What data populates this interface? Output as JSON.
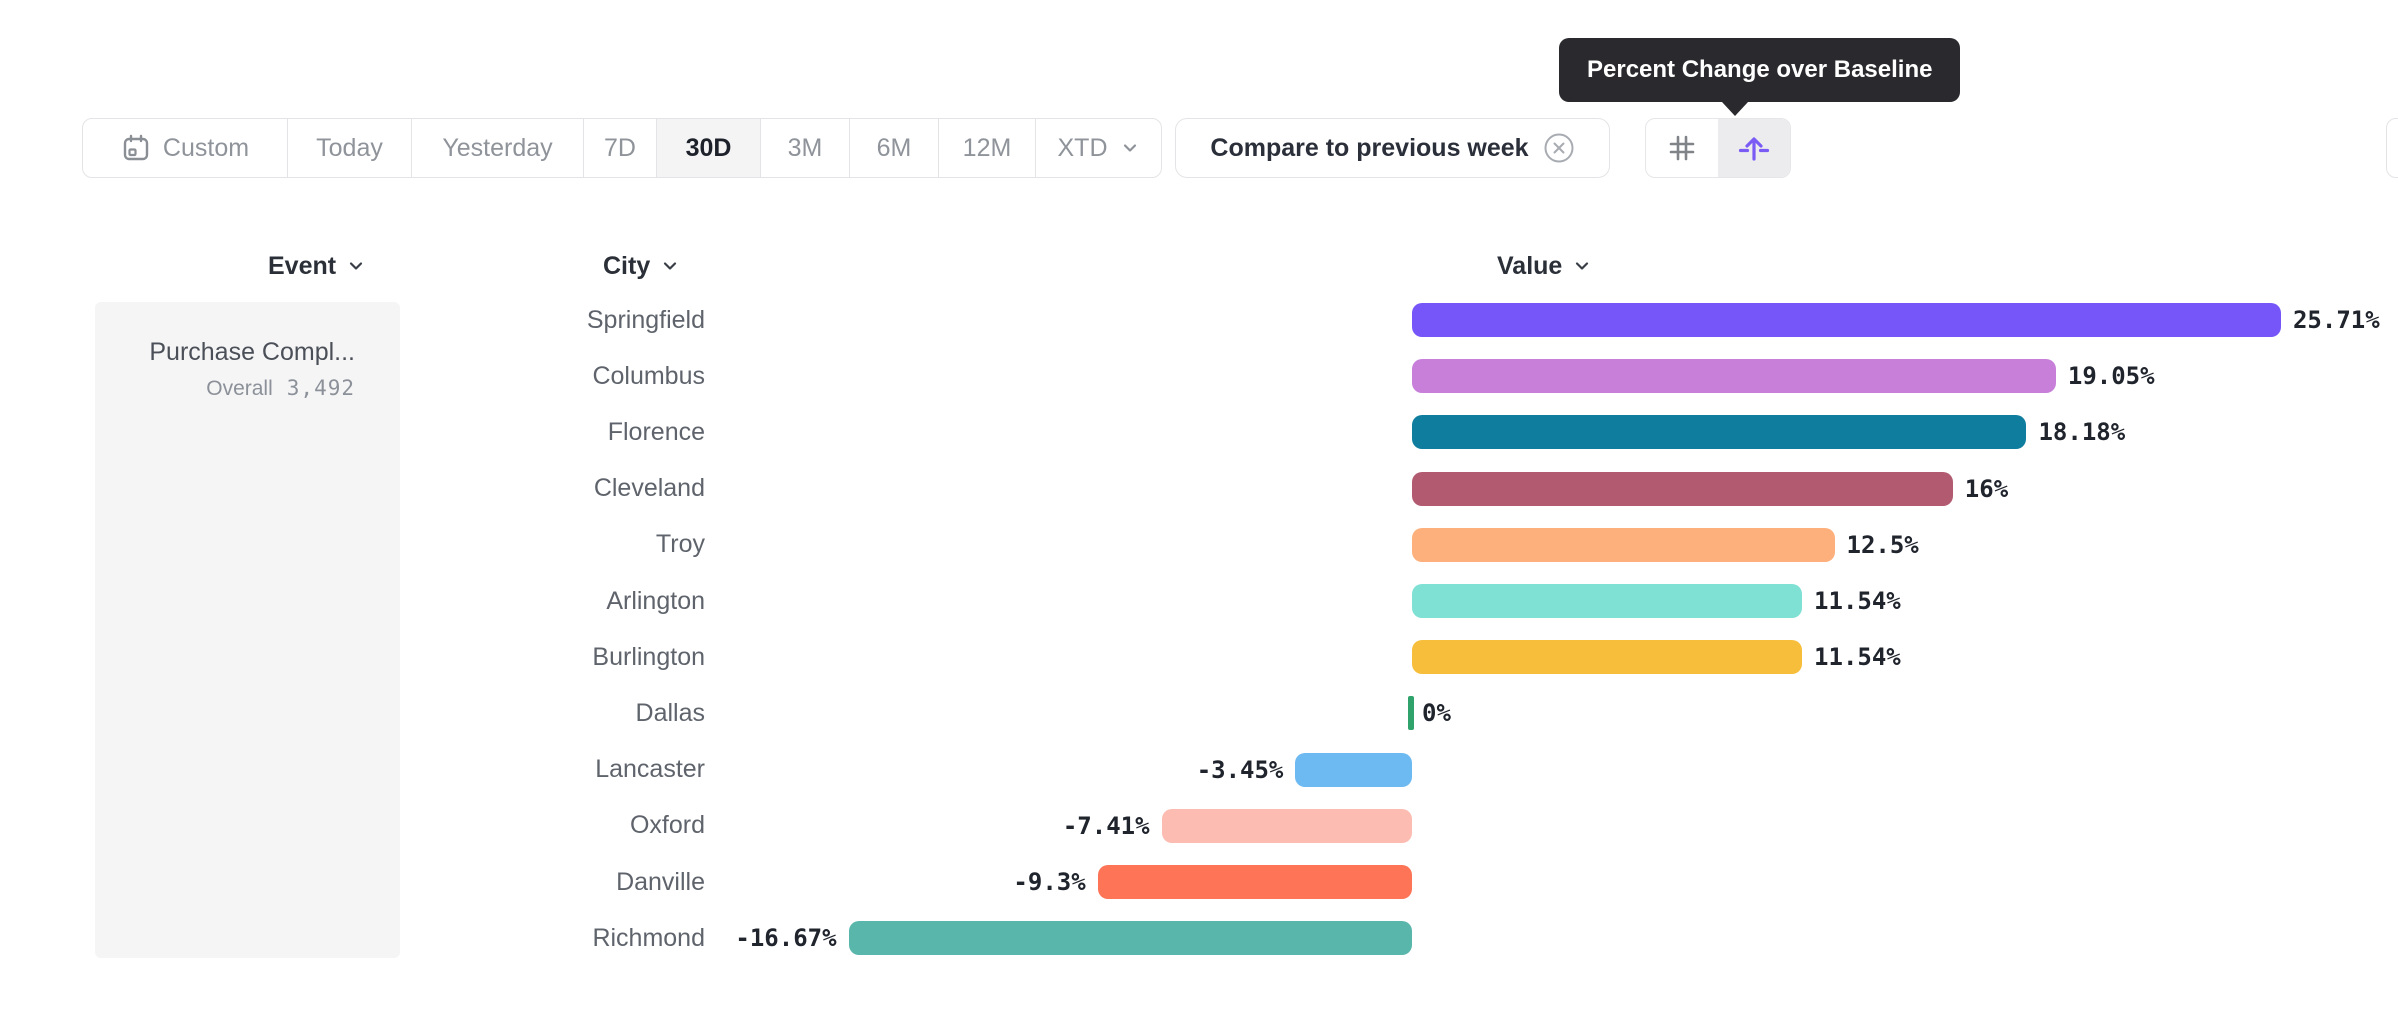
{
  "tooltip": {
    "text": "Percent Change over Baseline"
  },
  "toolbar": {
    "date_ranges": [
      {
        "label": "Custom",
        "icon": "calendar-icon",
        "selected": false
      },
      {
        "label": "Today",
        "icon": null,
        "selected": false
      },
      {
        "label": "Yesterday",
        "icon": null,
        "selected": false
      },
      {
        "label": "7D",
        "icon": null,
        "selected": false
      },
      {
        "label": "30D",
        "icon": null,
        "selected": true
      },
      {
        "label": "3M",
        "icon": null,
        "selected": false
      },
      {
        "label": "6M",
        "icon": null,
        "selected": false
      },
      {
        "label": "12M",
        "icon": null,
        "selected": false
      },
      {
        "label": "XTD",
        "icon": "chevron-down-icon",
        "selected": false
      }
    ],
    "compare_label": "Compare to previous week",
    "view_modes": [
      {
        "name": "numbers",
        "icon": "hash-icon",
        "selected": false
      },
      {
        "name": "percent-change-over-baseline",
        "icon": "arrow-up-baseline-icon",
        "selected": true
      }
    ],
    "accent_color": "#7a5cf5"
  },
  "columns": {
    "event": "Event",
    "city": "City",
    "value": "Value"
  },
  "event_panel": {
    "name": "Purchase Compl...",
    "overall_label": "Overall",
    "overall_value": "3,492"
  },
  "chart_data": {
    "type": "bar",
    "orientation": "horizontal",
    "unit": "%",
    "categories": [
      "Springfield",
      "Columbus",
      "Florence",
      "Cleveland",
      "Troy",
      "Arlington",
      "Burlington",
      "Dallas",
      "Lancaster",
      "Oxford",
      "Danville",
      "Richmond"
    ],
    "values": [
      25.71,
      19.05,
      18.18,
      16,
      12.5,
      11.54,
      11.54,
      0,
      -3.45,
      -7.41,
      -9.3,
      -16.67
    ],
    "value_labels": [
      "25.71%",
      "19.05%",
      "18.18%",
      "16%",
      "12.5%",
      "11.54%",
      "11.54%",
      "0%",
      "-3.45%",
      "-7.41%",
      "-9.3%",
      "-16.67%"
    ],
    "colors": [
      "#7656F8",
      "#C77FD9",
      "#0E7D9E",
      "#B25A70",
      "#FDB07C",
      "#7FE0D4",
      "#F7BE3C",
      "#2FA36B",
      "#6DB9F2",
      "#FCBCB2",
      "#FD7457",
      "#59B6AB"
    ],
    "xlim": [
      -16.67,
      25.71
    ],
    "grid": false,
    "legend": false
  }
}
